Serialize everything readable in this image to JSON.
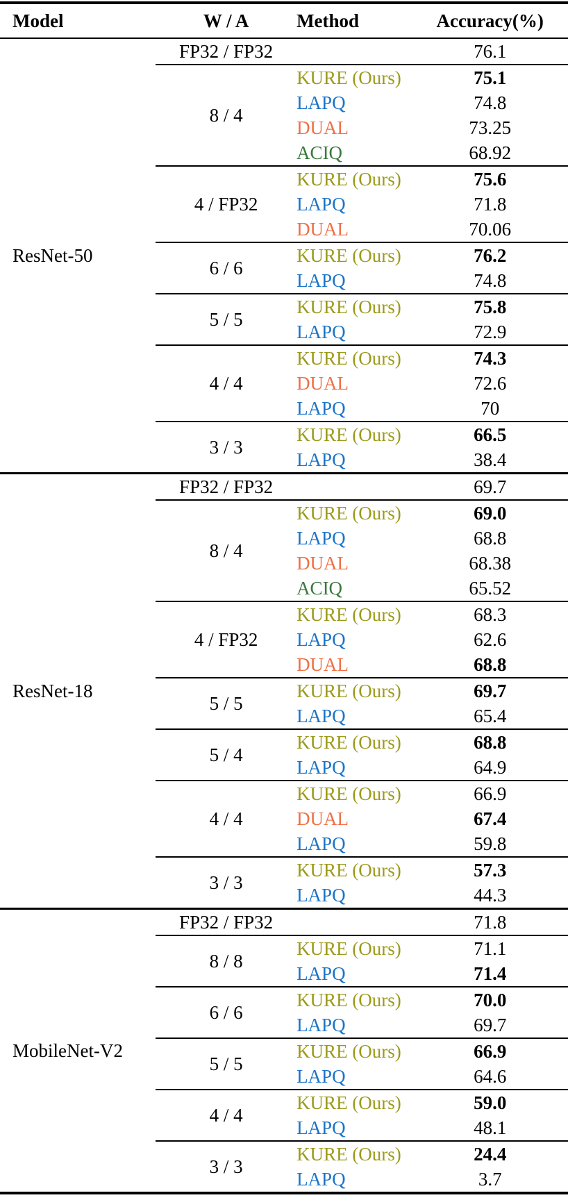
{
  "table": {
    "headers": [
      "Model",
      "W / A",
      "Method",
      "Accuracy(%)"
    ],
    "method_colors": {
      "KURE (Ours)": "#9c9a1b",
      "LAPQ": "#1b74c8",
      "DUAL": "#ef7046",
      "ACIQ": "#38793c"
    },
    "text_color": "#000000",
    "sections": [
      {
        "model": "ResNet-50",
        "groups": [
          {
            "wa": "FP32 / FP32",
            "rows": [
              {
                "method": "",
                "accuracy": "76.1",
                "bold": false
              }
            ]
          },
          {
            "wa": "8 / 4",
            "rows": [
              {
                "method": "KURE (Ours)",
                "accuracy": "75.1",
                "bold": true
              },
              {
                "method": "LAPQ",
                "accuracy": "74.8",
                "bold": false
              },
              {
                "method": "DUAL",
                "accuracy": "73.25",
                "bold": false
              },
              {
                "method": "ACIQ",
                "accuracy": "68.92",
                "bold": false
              }
            ]
          },
          {
            "wa": "4 / FP32",
            "rows": [
              {
                "method": "KURE (Ours)",
                "accuracy": "75.6",
                "bold": true
              },
              {
                "method": "LAPQ",
                "accuracy": "71.8",
                "bold": false
              },
              {
                "method": "DUAL",
                "accuracy": "70.06",
                "bold": false
              }
            ]
          },
          {
            "wa": "6 / 6",
            "rows": [
              {
                "method": "KURE (Ours)",
                "accuracy": "76.2",
                "bold": true
              },
              {
                "method": "LAPQ",
                "accuracy": "74.8",
                "bold": false
              }
            ]
          },
          {
            "wa": "5 / 5",
            "rows": [
              {
                "method": "KURE (Ours)",
                "accuracy": "75.8",
                "bold": true
              },
              {
                "method": "LAPQ",
                "accuracy": "72.9",
                "bold": false
              }
            ]
          },
          {
            "wa": "4 / 4",
            "rows": [
              {
                "method": "KURE (Ours)",
                "accuracy": "74.3",
                "bold": true
              },
              {
                "method": "DUAL",
                "accuracy": "72.6",
                "bold": false
              },
              {
                "method": "LAPQ",
                "accuracy": "70",
                "bold": false
              }
            ]
          },
          {
            "wa": "3 / 3",
            "rows": [
              {
                "method": "KURE (Ours)",
                "accuracy": "66.5",
                "bold": true
              },
              {
                "method": "LAPQ",
                "accuracy": "38.4",
                "bold": false
              }
            ]
          }
        ]
      },
      {
        "model": "ResNet-18",
        "groups": [
          {
            "wa": "FP32 / FP32",
            "rows": [
              {
                "method": "",
                "accuracy": "69.7",
                "bold": false
              }
            ]
          },
          {
            "wa": "8 / 4",
            "rows": [
              {
                "method": "KURE (Ours)",
                "accuracy": "69.0",
                "bold": true
              },
              {
                "method": "LAPQ",
                "accuracy": "68.8",
                "bold": false
              },
              {
                "method": "DUAL",
                "accuracy": "68.38",
                "bold": false
              },
              {
                "method": "ACIQ",
                "accuracy": "65.52",
                "bold": false
              }
            ]
          },
          {
            "wa": "4 / FP32",
            "rows": [
              {
                "method": "KURE (Ours)",
                "accuracy": "68.3",
                "bold": false
              },
              {
                "method": "LAPQ",
                "accuracy": "62.6",
                "bold": false
              },
              {
                "method": "DUAL",
                "accuracy": "68.8",
                "bold": true
              }
            ]
          },
          {
            "wa": "5 / 5",
            "rows": [
              {
                "method": "KURE (Ours)",
                "accuracy": "69.7",
                "bold": true
              },
              {
                "method": "LAPQ",
                "accuracy": "65.4",
                "bold": false
              }
            ]
          },
          {
            "wa": "5 / 4",
            "rows": [
              {
                "method": "KURE (Ours)",
                "accuracy": "68.8",
                "bold": true
              },
              {
                "method": "LAPQ",
                "accuracy": "64.9",
                "bold": false
              }
            ]
          },
          {
            "wa": "4 / 4",
            "rows": [
              {
                "method": "KURE (Ours)",
                "accuracy": "66.9",
                "bold": false
              },
              {
                "method": "DUAL",
                "accuracy": "67.4",
                "bold": true
              },
              {
                "method": "LAPQ",
                "accuracy": "59.8",
                "bold": false
              }
            ]
          },
          {
            "wa": "3 / 3",
            "rows": [
              {
                "method": "KURE (Ours)",
                "accuracy": "57.3",
                "bold": true
              },
              {
                "method": "LAPQ",
                "accuracy": "44.3",
                "bold": false
              }
            ]
          }
        ]
      },
      {
        "model": "MobileNet-V2",
        "groups": [
          {
            "wa": "FP32 / FP32",
            "rows": [
              {
                "method": "",
                "accuracy": "71.8",
                "bold": false
              }
            ]
          },
          {
            "wa": "8 / 8",
            "rows": [
              {
                "method": "KURE (Ours)",
                "accuracy": "71.1",
                "bold": false
              },
              {
                "method": "LAPQ",
                "accuracy": "71.4",
                "bold": true
              }
            ]
          },
          {
            "wa": "6 / 6",
            "rows": [
              {
                "method": "KURE (Ours)",
                "accuracy": "70.0",
                "bold": true
              },
              {
                "method": "LAPQ",
                "accuracy": "69.7",
                "bold": false
              }
            ]
          },
          {
            "wa": "5 / 5",
            "rows": [
              {
                "method": "KURE (Ours)",
                "accuracy": "66.9",
                "bold": true
              },
              {
                "method": "LAPQ",
                "accuracy": "64.6",
                "bold": false
              }
            ]
          },
          {
            "wa": "4 / 4",
            "rows": [
              {
                "method": "KURE (Ours)",
                "accuracy": "59.0",
                "bold": true
              },
              {
                "method": "LAPQ",
                "accuracy": "48.1",
                "bold": false
              }
            ]
          },
          {
            "wa": "3 / 3",
            "rows": [
              {
                "method": "KURE (Ours)",
                "accuracy": "24.4",
                "bold": true
              },
              {
                "method": "LAPQ",
                "accuracy": "3.7",
                "bold": false
              }
            ]
          }
        ]
      }
    ]
  }
}
